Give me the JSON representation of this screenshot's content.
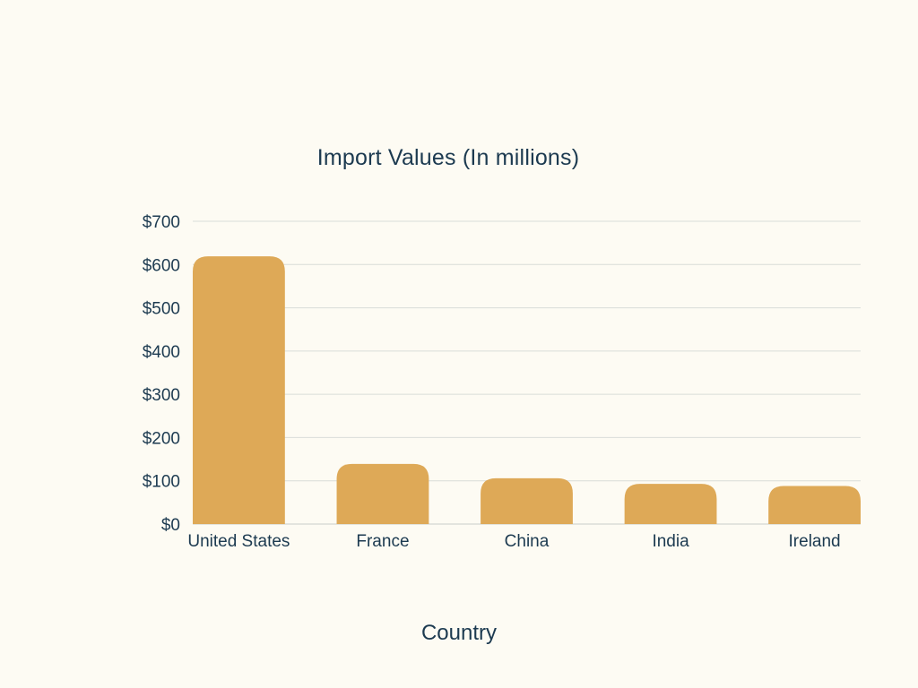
{
  "colors": {
    "background": "#fdfbf3",
    "bar": "#dea957",
    "text": "#1c3a50",
    "grid": "#d9dcd8"
  },
  "chart_data": {
    "type": "bar",
    "title": "Import Values (In millions)",
    "xlabel": "Country",
    "ylabel": "",
    "categories": [
      "United States",
      "France",
      "China",
      "India",
      "Ireland"
    ],
    "values": [
      619,
      139,
      106,
      93,
      88
    ],
    "ylim": [
      0,
      700
    ],
    "yticks": [
      0,
      100,
      200,
      300,
      400,
      500,
      600,
      700
    ],
    "ytick_labels": [
      "$0",
      "$100",
      "$200",
      "$300",
      "$400",
      "$500",
      "$600",
      "$700"
    ],
    "grid": true,
    "legend": "none"
  }
}
